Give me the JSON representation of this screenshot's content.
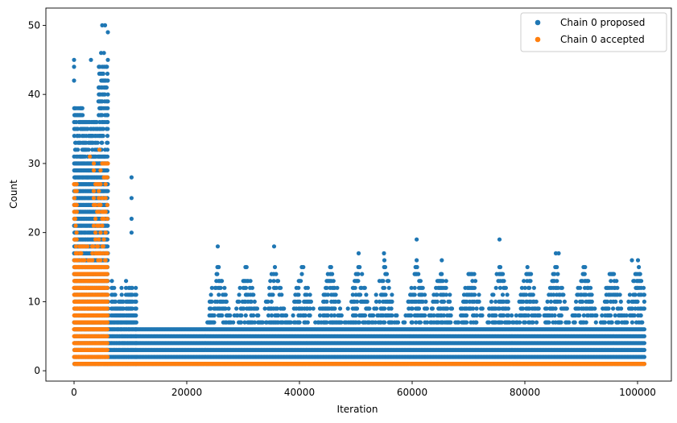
{
  "chart_data": {
    "type": "scatter",
    "title": "",
    "xlabel": "Iteration",
    "ylabel": "Count",
    "xlim": [
      -5000,
      106000
    ],
    "ylim": [
      -1.5,
      52.5
    ],
    "xticks": [
      0,
      20000,
      40000,
      60000,
      80000,
      100000
    ],
    "yticks": [
      0,
      10,
      20,
      30,
      40,
      50
    ],
    "grid": false,
    "legend_position": "top-right",
    "series": [
      {
        "name": "Chain 0 proposed",
        "color": "#1f77b4",
        "x_range": [
          0,
          101300
        ],
        "bands": [
          {
            "x": [
              0,
              6000
            ],
            "y": [
              1,
              50
            ]
          },
          {
            "x": [
              6000,
              8000
            ],
            "y": [
              1,
              18
            ]
          },
          {
            "x": [
              8000,
              11000
            ],
            "y": [
              1,
              28
            ]
          },
          {
            "x": [
              11000,
              101300
            ],
            "y": [
              1,
              19
            ]
          }
        ],
        "points": [
          {
            "x": 5000,
            "y": 50
          },
          {
            "x": 5500,
            "y": 50
          },
          {
            "x": 6000,
            "y": 49
          },
          {
            "x": 0,
            "y": 45
          },
          {
            "x": 0,
            "y": 44
          },
          {
            "x": 0,
            "y": 42
          },
          {
            "x": 4800,
            "y": 46
          },
          {
            "x": 5300,
            "y": 46
          },
          {
            "x": 6000,
            "y": 45
          },
          {
            "x": 3000,
            "y": 45
          },
          {
            "x": 10200,
            "y": 28
          },
          {
            "x": 10200,
            "y": 25
          },
          {
            "x": 10200,
            "y": 22
          },
          {
            "x": 10200,
            "y": 20
          },
          {
            "x": 25500,
            "y": 18
          },
          {
            "x": 35500,
            "y": 18
          },
          {
            "x": 60800,
            "y": 19
          },
          {
            "x": 75500,
            "y": 19
          },
          {
            "x": 50500,
            "y": 17
          },
          {
            "x": 55000,
            "y": 17
          },
          {
            "x": 85500,
            "y": 17
          },
          {
            "x": 86000,
            "y": 17
          },
          {
            "x": 99000,
            "y": 16
          }
        ]
      },
      {
        "name": "Chain 0 accepted",
        "color": "#ff7f0e",
        "x_range": [
          0,
          101300
        ],
        "bands": [
          {
            "x": [
              0,
              6000
            ],
            "y": [
              1,
              32
            ]
          },
          {
            "x": [
              6000,
              101300
            ],
            "y": [
              1,
              1
            ]
          }
        ],
        "points": [
          {
            "x": 0,
            "y": 27
          },
          {
            "x": 2800,
            "y": 31
          },
          {
            "x": 4500,
            "y": 32
          },
          {
            "x": 6000,
            "y": 30
          }
        ]
      }
    ]
  }
}
